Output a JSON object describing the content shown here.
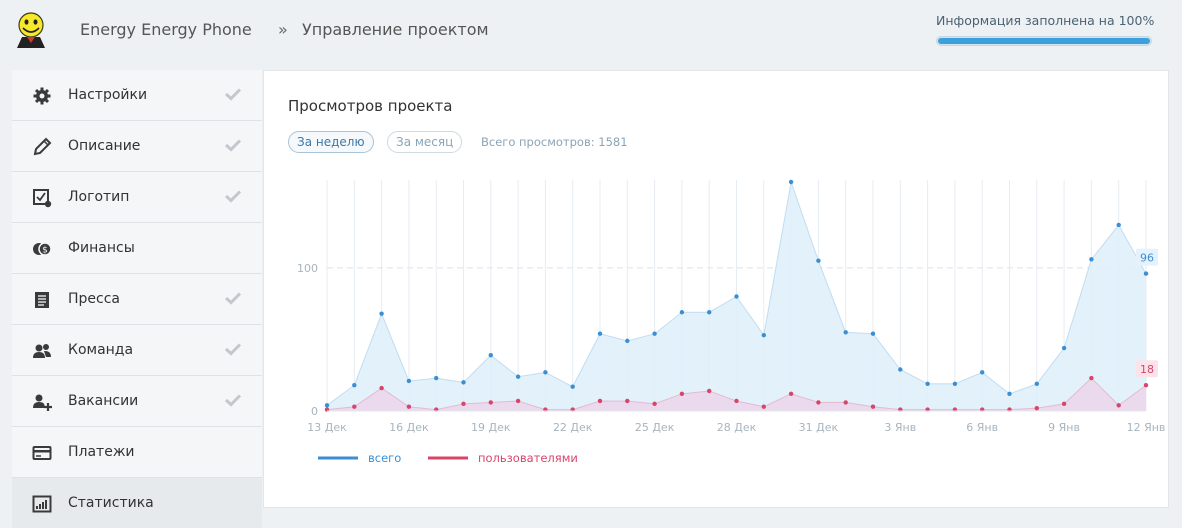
{
  "header": {
    "app_name": "Energy Energy Phone",
    "breadcrumb_sep": "»",
    "breadcrumb": "Управление проектом",
    "progress_label": "Информация заполнена на 100%",
    "progress": 1.0
  },
  "sidebar": {
    "items": [
      {
        "label": "Настройки",
        "icon": "gear-icon",
        "checked": true
      },
      {
        "label": "Описание",
        "icon": "pencil-icon",
        "checked": true
      },
      {
        "label": "Логотип",
        "icon": "logo-edit-icon",
        "checked": true
      },
      {
        "label": "Финансы",
        "icon": "coins-icon",
        "checked": false
      },
      {
        "label": "Пресса",
        "icon": "newspaper-icon",
        "checked": true
      },
      {
        "label": "Команда",
        "icon": "team-icon",
        "checked": true
      },
      {
        "label": "Вакансии",
        "icon": "add-user-icon",
        "checked": true
      },
      {
        "label": "Платежи",
        "icon": "card-icon",
        "checked": false
      },
      {
        "label": "Статистика",
        "icon": "stats-icon",
        "checked": false,
        "active": true
      }
    ]
  },
  "main": {
    "title": "Просмотров проекта",
    "tab_week": "За неделю",
    "tab_month": "За месяц",
    "total_views": "Всего просмотров: 1581"
  },
  "colors": {
    "total": "#3a8fd4",
    "users": "#d9446b",
    "total_fill": "#dff0fa",
    "users_fill": "#ecd6ea"
  },
  "chart_data": {
    "type": "area",
    "x": [
      "13 Дек",
      "14 Дек",
      "15 Дек",
      "16 Дек",
      "17 Дек",
      "18 Дек",
      "19 Дек",
      "20 Дек",
      "21 Дек",
      "22 Дек",
      "23 Дек",
      "24 Дек",
      "25 Дек",
      "26 Дек",
      "27 Дек",
      "28 Дек",
      "29 Дек",
      "30 Дек",
      "31 Дек",
      "1 Янв",
      "2 Янв",
      "3 Янв",
      "4 Янв",
      "5 Янв",
      "6 Янв",
      "7 Янв",
      "8 Янв",
      "9 Янв",
      "10 Янв",
      "11 Янв",
      "12 Янв"
    ],
    "tick_labels": [
      "13 Дек",
      "16 Дек",
      "19 Дек",
      "22 Дек",
      "25 Дек",
      "28 Дек",
      "31 Дек",
      "3 Янв",
      "6 Янв",
      "9 Янв",
      "12 Янв"
    ],
    "y_ticks": [
      0,
      100
    ],
    "ylim": [
      0,
      160
    ],
    "series": [
      {
        "name": "всего",
        "values": [
          4,
          18,
          68,
          21,
          23,
          20,
          39,
          24,
          27,
          17,
          54,
          49,
          54,
          69,
          69,
          80,
          53,
          160,
          105,
          55,
          54,
          29,
          19,
          19,
          27,
          12,
          19,
          44,
          106,
          130,
          96
        ]
      },
      {
        "name": "пользователями",
        "values": [
          1,
          3,
          16,
          3,
          1,
          5,
          6,
          7,
          1,
          1,
          7,
          7,
          5,
          12,
          14,
          7,
          3,
          12,
          6,
          6,
          3,
          1,
          1,
          1,
          1,
          1,
          2,
          5,
          23,
          4,
          18
        ]
      }
    ],
    "end_labels": [
      "96",
      "18"
    ],
    "legend_position": "bottom-left",
    "grid": "vertical"
  }
}
